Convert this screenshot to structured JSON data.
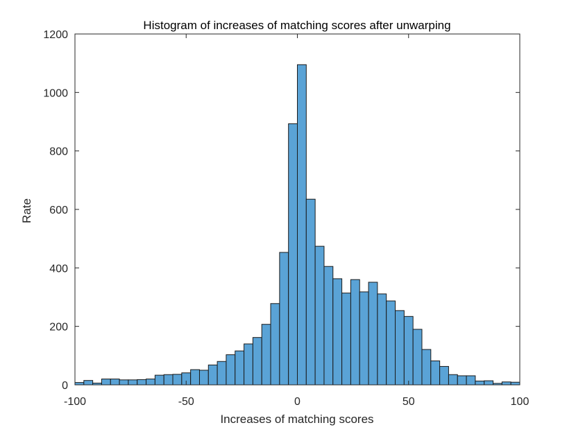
{
  "chart_data": {
    "type": "bar",
    "subtype": "histogram",
    "title": "Histogram of increases of matching scores after unwarping",
    "xlabel": "Increases of matching scores",
    "ylabel": "Rate",
    "xlim": [
      -100,
      100
    ],
    "ylim": [
      0,
      1200
    ],
    "xticks": [
      "-100",
      "-50",
      "0",
      "50",
      "100"
    ],
    "yticks": [
      "0",
      "200",
      "400",
      "600",
      "800",
      "1000",
      "1200"
    ],
    "bin_width": 4,
    "bin_edges_start": -100,
    "values": [
      8,
      15,
      6,
      20,
      20,
      17,
      17,
      18,
      20,
      33,
      35,
      36,
      41,
      52,
      50,
      68,
      80,
      103,
      116,
      140,
      162,
      207,
      278,
      453,
      893,
      1095,
      635,
      474,
      405,
      363,
      314,
      360,
      318,
      351,
      311,
      287,
      254,
      234,
      190,
      121,
      82,
      63,
      35,
      31,
      31,
      13,
      14,
      5,
      10,
      9,
      9
    ],
    "bar_color": "#5AA3D6",
    "edge_color": "#1a1a1a",
    "grid": false,
    "legend": "none"
  }
}
